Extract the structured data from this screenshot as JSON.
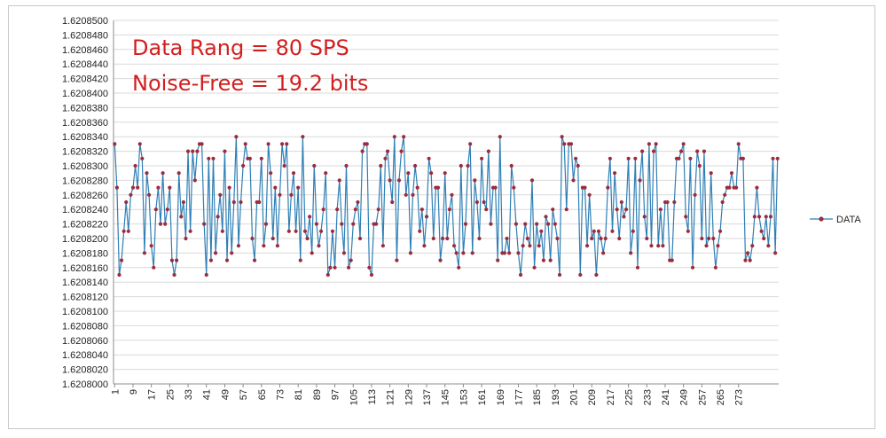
{
  "chart_data": {
    "type": "line",
    "annotations": [
      "Data Rang = 80 SPS",
      "Noise-Free = 19.2 bits"
    ],
    "ylim": [
      1.6208,
      1.62085
    ],
    "y_ticks": [
      "1.6208500",
      "1.6208480",
      "1.6208460",
      "1.6208440",
      "1.6208420",
      "1.6208400",
      "1.6208380",
      "1.6208360",
      "1.6208340",
      "1.6208320",
      "1.6208300",
      "1.6208280",
      "1.6208260",
      "1.6208240",
      "1.6208220",
      "1.6208200",
      "1.6208180",
      "1.6208160",
      "1.6208140",
      "1.6208120",
      "1.6208100",
      "1.6208080",
      "1.6208060",
      "1.6208040",
      "1.6208020",
      "1.6208000"
    ],
    "x_ticks": [
      "1",
      "9",
      "17",
      "25",
      "33",
      "41",
      "49",
      "57",
      "65",
      "73",
      "81",
      "89",
      "97",
      "105",
      "113",
      "121",
      "129",
      "137",
      "145",
      "153",
      "161",
      "169",
      "177",
      "185",
      "193",
      "201",
      "209",
      "217",
      "225",
      "233",
      "241",
      "249",
      "257",
      "265",
      "273"
    ],
    "grid": true,
    "legend_position": "right",
    "line_color": "#2f7fb5",
    "marker_color": "#9b2c3c",
    "series": [
      {
        "name": "DATA",
        "y": [
          1.620833,
          1.620827,
          1.620815,
          1.620817,
          1.620821,
          1.620825,
          1.620821,
          1.620826,
          1.620827,
          1.62083,
          1.620827,
          1.620833,
          1.620831,
          1.620818,
          1.620829,
          1.620826,
          1.620819,
          1.620816,
          1.620824,
          1.620827,
          1.620822,
          1.620829,
          1.620822,
          1.620824,
          1.620827,
          1.620817,
          1.620815,
          1.620817,
          1.620829,
          1.620823,
          1.620825,
          1.62082,
          1.620832,
          1.620821,
          1.620832,
          1.620828,
          1.620832,
          1.620833,
          1.620833,
          1.620822,
          1.620815,
          1.620831,
          1.620817,
          1.620831,
          1.620818,
          1.620823,
          1.620826,
          1.620821,
          1.620832,
          1.620817,
          1.620827,
          1.620818,
          1.620825,
          1.620834,
          1.620819,
          1.620825,
          1.62083,
          1.620833,
          1.620831,
          1.620831,
          1.62082,
          1.620817,
          1.620825,
          1.620825,
          1.620831,
          1.620819,
          1.620822,
          1.620833,
          1.620829,
          1.62082,
          1.620827,
          1.620819,
          1.620826,
          1.620833,
          1.62083,
          1.620833,
          1.620821,
          1.620826,
          1.620829,
          1.620821,
          1.620827,
          1.620817,
          1.620834,
          1.620821,
          1.62082,
          1.620823,
          1.620818,
          1.62083,
          1.620822,
          1.620819,
          1.620821,
          1.620824,
          1.620829,
          1.620815,
          1.620816,
          1.620821,
          1.620816,
          1.620824,
          1.620828,
          1.620822,
          1.620818,
          1.62083,
          1.620816,
          1.620817,
          1.620822,
          1.620824,
          1.620825,
          1.62082,
          1.620832,
          1.620833,
          1.620833,
          1.620816,
          1.620815,
          1.620822,
          1.620822,
          1.620824,
          1.62083,
          1.620819,
          1.620831,
          1.620832,
          1.620828,
          1.620825,
          1.620834,
          1.620817,
          1.620828,
          1.620832,
          1.620834,
          1.620826,
          1.620829,
          1.620818,
          1.620826,
          1.62083,
          1.620827,
          1.620821,
          1.620824,
          1.620819,
          1.620823,
          1.620831,
          1.620829,
          1.62082,
          1.620827,
          1.620827,
          1.620817,
          1.62082,
          1.620829,
          1.62082,
          1.620824,
          1.620826,
          1.620819,
          1.620818,
          1.620816,
          1.62083,
          1.620818,
          1.620822,
          1.62083,
          1.620833,
          1.620818,
          1.620828,
          1.620825,
          1.62082,
          1.620831,
          1.620825,
          1.620824,
          1.620832,
          1.620822,
          1.620827,
          1.620827,
          1.620817,
          1.620834,
          1.620818,
          1.620818,
          1.62082,
          1.620818,
          1.62083,
          1.620827,
          1.620822,
          1.620818,
          1.620815,
          1.620819,
          1.620822,
          1.62082,
          1.620819,
          1.620828,
          1.620816,
          1.620822,
          1.620819,
          1.620821,
          1.620817,
          1.620823,
          1.620822,
          1.620817,
          1.620824,
          1.620822,
          1.62082,
          1.620815,
          1.620834,
          1.620833,
          1.620824,
          1.620833,
          1.620833,
          1.620828,
          1.620831,
          1.62083,
          1.620815,
          1.620827,
          1.620827,
          1.620819,
          1.620826,
          1.62082,
          1.620821,
          1.620815,
          1.620821,
          1.62082,
          1.620818,
          1.62082,
          1.620827,
          1.620831,
          1.620821,
          1.620829,
          1.620824,
          1.62082,
          1.620825,
          1.620823,
          1.620824,
          1.620831,
          1.620818,
          1.620821,
          1.620831,
          1.620816,
          1.620828,
          1.620832,
          1.620823,
          1.62082,
          1.620833,
          1.620819,
          1.620832,
          1.620833,
          1.620819,
          1.620824,
          1.620819,
          1.620825,
          1.620825,
          1.620817,
          1.620817,
          1.620825,
          1.620831,
          1.620831,
          1.620832,
          1.620833,
          1.620823,
          1.620821,
          1.620831,
          1.620816,
          1.620826,
          1.620832,
          1.62083,
          1.62082,
          1.620832,
          1.620819,
          1.62082,
          1.620829,
          1.62082,
          1.620816,
          1.620819,
          1.620821,
          1.620825,
          1.620826,
          1.620827,
          1.620827,
          1.620829,
          1.620827,
          1.620827,
          1.620833,
          1.620831,
          1.620831,
          1.620817,
          1.620818,
          1.620817,
          1.620819,
          1.620823,
          1.620827,
          1.620823,
          1.620821,
          1.62082,
          1.620823,
          1.620819,
          1.620823,
          1.620831,
          1.620818,
          1.620831
        ]
      }
    ]
  }
}
